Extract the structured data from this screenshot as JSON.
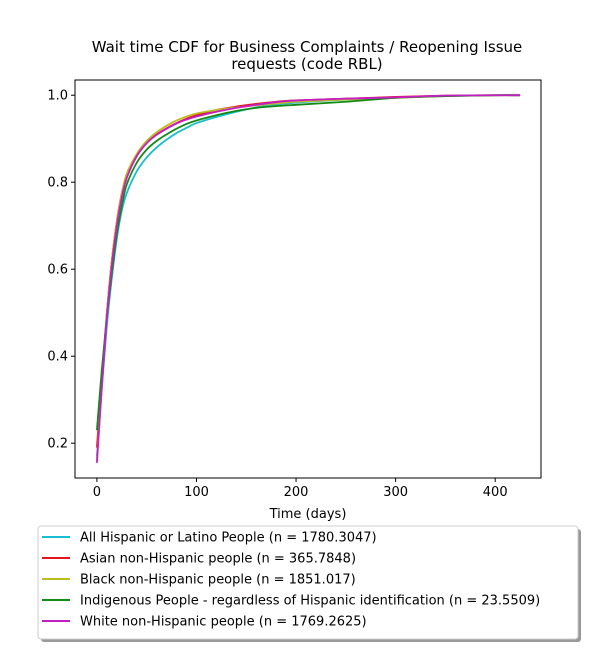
{
  "chart_data": {
    "type": "line",
    "title": "Wait time CDF for Business Complaints / Reopening Issue\nrequests (code RBL)",
    "xlabel": "Time (days)",
    "ylabel": "",
    "xlim": [
      -22,
      446
    ],
    "ylim": [
      0.12,
      1.035
    ],
    "xticks": [
      0,
      100,
      200,
      300,
      400
    ],
    "yticks": [
      0.2,
      0.4,
      0.6,
      0.8,
      1.0
    ],
    "grid": false,
    "legend_position": "below",
    "series": [
      {
        "name": "All Hispanic or Latino People (n = 1780.3047)",
        "color": "#17becf",
        "x": [
          0,
          5,
          10,
          15,
          20,
          25,
          30,
          40,
          50,
          60,
          70,
          80,
          90,
          100,
          120,
          140,
          160,
          180,
          200,
          250,
          300,
          350,
          400,
          425
        ],
        "y": [
          0.17,
          0.33,
          0.47,
          0.58,
          0.67,
          0.735,
          0.775,
          0.825,
          0.857,
          0.88,
          0.898,
          0.913,
          0.925,
          0.936,
          0.95,
          0.962,
          0.972,
          0.978,
          0.983,
          0.99,
          0.995,
          0.998,
          1.0,
          1.0
        ]
      },
      {
        "name": "Asian non-Hispanic people (n = 365.7848)",
        "color": "#e8141c",
        "x": [
          0,
          5,
          10,
          15,
          20,
          25,
          30,
          40,
          50,
          60,
          70,
          80,
          90,
          100,
          120,
          140,
          160,
          180,
          200,
          250,
          300,
          350,
          400,
          425
        ],
        "y": [
          0.19,
          0.35,
          0.5,
          0.62,
          0.71,
          0.775,
          0.815,
          0.86,
          0.89,
          0.91,
          0.924,
          0.936,
          0.946,
          0.954,
          0.966,
          0.974,
          0.98,
          0.985,
          0.988,
          0.992,
          0.996,
          0.999,
          1.0,
          1.0
        ]
      },
      {
        "name": "Black non-Hispanic people (n = 1851.017)",
        "color": "#bcbd22",
        "x": [
          0,
          5,
          10,
          15,
          20,
          25,
          30,
          40,
          50,
          60,
          70,
          80,
          90,
          100,
          120,
          140,
          160,
          180,
          200,
          250,
          300,
          350,
          400,
          425
        ],
        "y": [
          0.16,
          0.34,
          0.5,
          0.62,
          0.71,
          0.775,
          0.82,
          0.865,
          0.895,
          0.915,
          0.93,
          0.942,
          0.951,
          0.958,
          0.966,
          0.972,
          0.977,
          0.981,
          0.985,
          0.99,
          0.994,
          0.998,
          1.0,
          1.0
        ]
      },
      {
        "name": "Indigenous People - regardless of Hispanic identification (n = 23.5509)",
        "color": "#138a13",
        "x": [
          0,
          5,
          10,
          15,
          20,
          25,
          30,
          40,
          50,
          60,
          70,
          80,
          90,
          100,
          120,
          140,
          160,
          180,
          200,
          250,
          300,
          350,
          400,
          425
        ],
        "y": [
          0.23,
          0.37,
          0.49,
          0.59,
          0.68,
          0.745,
          0.795,
          0.845,
          0.875,
          0.895,
          0.91,
          0.923,
          0.934,
          0.942,
          0.954,
          0.964,
          0.971,
          0.975,
          0.978,
          0.985,
          0.994,
          0.998,
          1.0,
          1.0
        ]
      },
      {
        "name": "White non-Hispanic people (n = 1769.2625)",
        "color": "#c41fc4",
        "x": [
          0,
          5,
          10,
          15,
          20,
          25,
          30,
          40,
          50,
          60,
          70,
          80,
          90,
          100,
          120,
          140,
          160,
          180,
          200,
          250,
          300,
          350,
          400,
          425
        ],
        "y": [
          0.155,
          0.33,
          0.49,
          0.61,
          0.7,
          0.765,
          0.81,
          0.86,
          0.89,
          0.909,
          0.923,
          0.935,
          0.944,
          0.951,
          0.962,
          0.971,
          0.978,
          0.984,
          0.988,
          0.992,
          0.995,
          0.999,
          1.0,
          1.0
        ]
      }
    ]
  }
}
